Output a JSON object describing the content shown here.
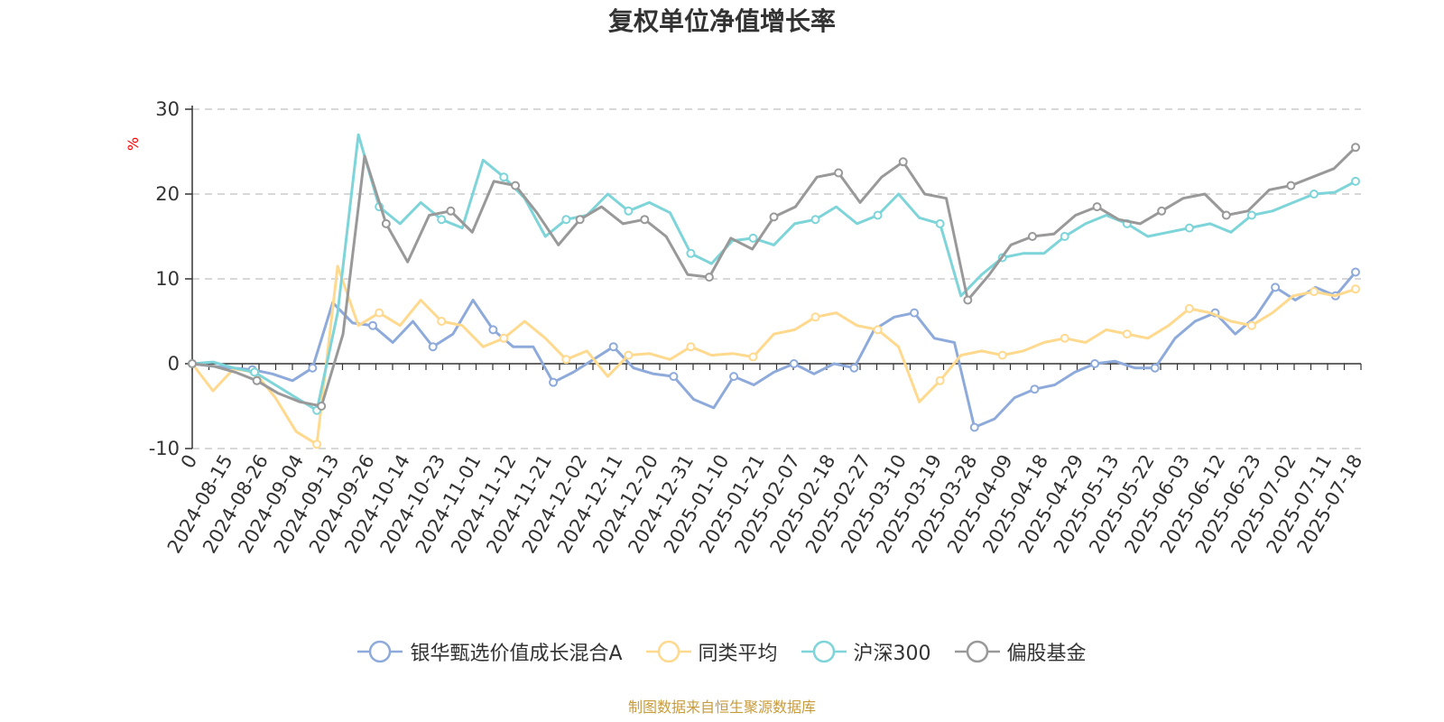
{
  "chart_data": {
    "type": "line",
    "title": "复权单位净值增长率",
    "ylabel": "%",
    "ylim": [
      -10,
      30
    ],
    "yticks": [
      -10,
      0,
      10,
      20,
      30
    ],
    "x_tick_labels": [
      "0",
      "2024-08-15",
      "2024-08-26",
      "2024-09-04",
      "2024-09-13",
      "2024-09-26",
      "2024-10-14",
      "2024-10-23",
      "2024-11-01",
      "2024-11-12",
      "2024-11-21",
      "2024-12-02",
      "2024-12-11",
      "2024-12-20",
      "2024-12-31",
      "2025-01-10",
      "2025-01-21",
      "2025-02-07",
      "2025-02-18",
      "2025-02-27",
      "2025-03-10",
      "2025-03-19",
      "2025-03-28",
      "2025-04-09",
      "2025-04-18",
      "2025-04-29",
      "2025-05-13",
      "2025-05-22",
      "2025-06-03",
      "2025-06-12",
      "2025-06-23",
      "2025-07-02",
      "2025-07-11",
      "2025-07-18"
    ],
    "grid": "horizontal-dashed",
    "legend_position": "bottom",
    "series": [
      {
        "name": "银华甄选价值成长混合A",
        "color": "#8eaadb",
        "values": [
          0,
          -0.3,
          -0.5,
          -0.7,
          -1.2,
          -2.0,
          -0.5,
          7.2,
          4.8,
          4.5,
          2.5,
          5.0,
          2.0,
          3.5,
          7.5,
          4.0,
          2.0,
          2.0,
          -2.2,
          -1.0,
          0.5,
          2.0,
          -0.5,
          -1.2,
          -1.5,
          -4.2,
          -5.2,
          -1.5,
          -2.5,
          -1.0,
          0,
          -1.2,
          0,
          -0.5,
          4.0,
          5.5,
          6.0,
          3.0,
          2.5,
          -7.5,
          -6.5,
          -4.0,
          -3.0,
          -2.5,
          -1.0,
          0,
          0.3,
          -0.5,
          -0.5,
          3.0,
          5.0,
          6.0,
          3.5,
          5.5,
          9.0,
          7.5,
          9.0,
          8.0,
          10.8
        ]
      },
      {
        "name": "同类平均",
        "color": "#ffd98e",
        "values": [
          0,
          -3.2,
          -0.6,
          -1.0,
          -4.0,
          -8.0,
          -9.5,
          11.5,
          4.5,
          6.0,
          4.5,
          7.5,
          5.0,
          4.5,
          2.0,
          3.0,
          5.0,
          3.0,
          0.5,
          1.5,
          -1.5,
          1.0,
          1.2,
          0.5,
          2.0,
          1.0,
          1.2,
          0.8,
          3.5,
          4.0,
          5.5,
          6.0,
          4.5,
          4.0,
          2.0,
          -4.5,
          -2.0,
          1.0,
          1.5,
          1.0,
          1.5,
          2.5,
          3.0,
          2.5,
          4.0,
          3.5,
          3.0,
          4.5,
          6.5,
          6.0,
          5.0,
          4.5,
          6.0,
          8.0,
          8.5,
          8.0,
          8.8
        ]
      },
      {
        "name": "沪深300",
        "color": "#7dd4d9",
        "values": [
          0,
          0.2,
          -0.5,
          -1.0,
          -2.5,
          -4.0,
          -5.5,
          6.0,
          27.0,
          18.5,
          16.5,
          19.0,
          17.0,
          16.0,
          24.0,
          22.0,
          19.5,
          15.0,
          17.0,
          17.5,
          20.0,
          18.0,
          19.0,
          17.8,
          13.0,
          11.8,
          14.5,
          14.8,
          14.0,
          16.5,
          17.0,
          18.5,
          16.5,
          17.5,
          20.0,
          17.2,
          16.5,
          8.0,
          10.5,
          12.5,
          13.0,
          13.0,
          15.0,
          16.5,
          17.5,
          16.5,
          15.0,
          15.5,
          16.0,
          16.5,
          15.5,
          17.5,
          18.0,
          19.0,
          20.0,
          20.2,
          21.5
        ]
      },
      {
        "name": "偏股基金",
        "color": "#999999",
        "values": [
          0,
          -0.3,
          -1.0,
          -2.0,
          -3.5,
          -4.5,
          -5.0,
          3.5,
          24.5,
          16.5,
          12.0,
          17.5,
          18.0,
          15.5,
          21.5,
          21.0,
          17.8,
          14.0,
          17.0,
          18.5,
          16.5,
          17.0,
          15.0,
          10.5,
          10.2,
          14.8,
          13.5,
          17.3,
          18.5,
          22.0,
          22.5,
          19.0,
          22.0,
          23.8,
          20.0,
          19.5,
          7.5,
          10.5,
          14.0,
          15.0,
          15.3,
          17.5,
          18.5,
          17.0,
          16.5,
          18.0,
          19.5,
          20.0,
          17.5,
          18.0,
          20.5,
          21.0,
          22.0,
          23.0,
          25.5
        ]
      }
    ]
  },
  "source_note": "制图数据来自恒生聚源数据库"
}
